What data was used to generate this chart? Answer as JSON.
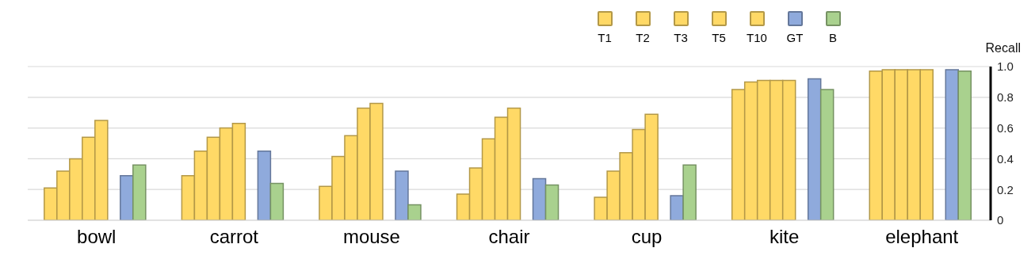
{
  "chart_data": {
    "type": "bar",
    "ylabel": "Recall",
    "categories": [
      "bowl",
      "carrot",
      "mouse",
      "chair",
      "cup",
      "kite",
      "elephant"
    ],
    "series": [
      {
        "name": "T1",
        "color": "#ffd966",
        "values": [
          0.21,
          0.29,
          0.22,
          0.17,
          0.15,
          0.85,
          0.97
        ]
      },
      {
        "name": "T2",
        "color": "#ffd966",
        "values": [
          0.32,
          0.45,
          0.415,
          0.34,
          0.32,
          0.9,
          0.98
        ]
      },
      {
        "name": "T3",
        "color": "#ffd966",
        "values": [
          0.4,
          0.54,
          0.55,
          0.53,
          0.44,
          0.91,
          0.98
        ]
      },
      {
        "name": "T5",
        "color": "#ffd966",
        "values": [
          0.54,
          0.6,
          0.73,
          0.67,
          0.59,
          0.91,
          0.98
        ]
      },
      {
        "name": "T10",
        "color": "#ffd966",
        "values": [
          0.65,
          0.63,
          0.76,
          0.73,
          0.69,
          0.91,
          0.98
        ]
      },
      {
        "name": "GT",
        "color": "#8faadc",
        "values": [
          0.29,
          0.45,
          0.32,
          0.27,
          0.16,
          0.92,
          0.98
        ]
      },
      {
        "name": "B",
        "color": "#a9d18e",
        "values": [
          0.36,
          0.24,
          0.1,
          0.23,
          0.36,
          0.85,
          0.97
        ]
      }
    ],
    "ylim": [
      0,
      1
    ],
    "yticks": [
      0,
      0.2,
      0.4,
      0.6,
      0.8,
      {
        "value": 1,
        "label": "1.0"
      }
    ],
    "grid": "y",
    "legend": "top right"
  }
}
